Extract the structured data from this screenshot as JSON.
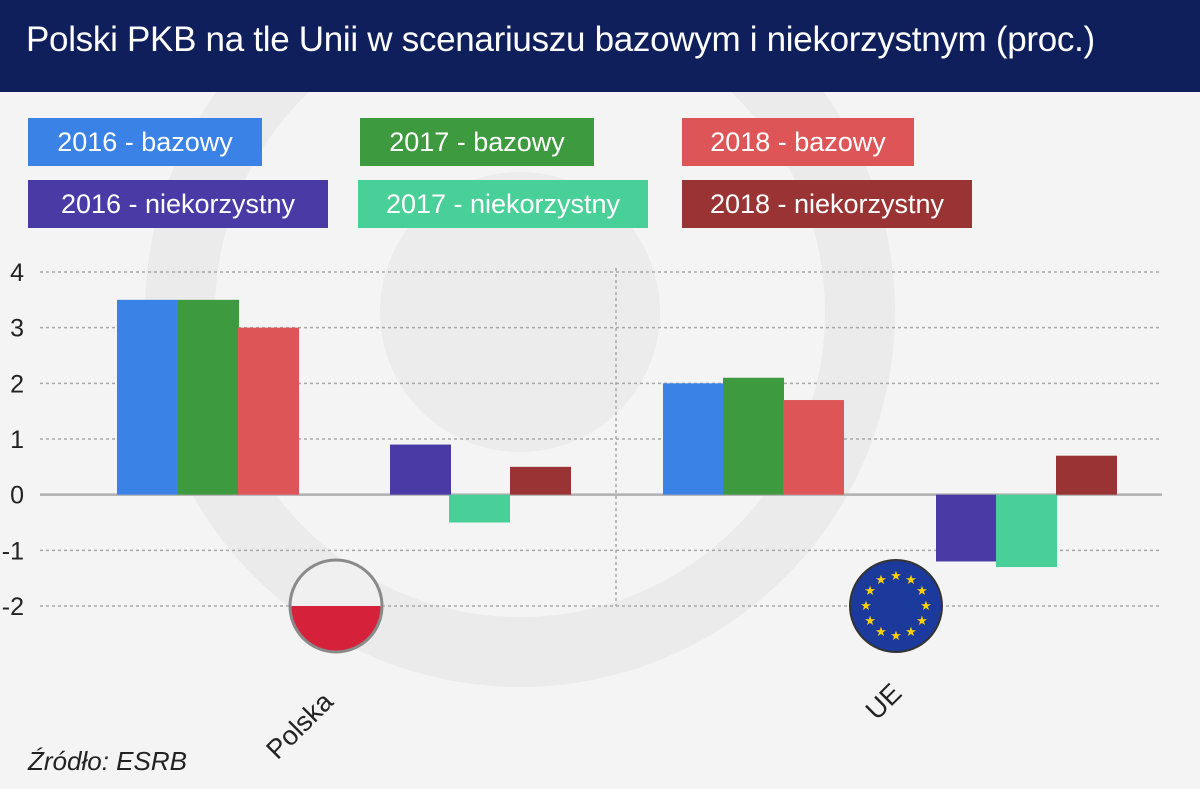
{
  "title": "Polski PKB na tle Unii w scenariuszu bazowym i niekorzystnym (proc.)",
  "source": "Źródło: ESRB",
  "colors": {
    "header_bg": "#0f1f5c",
    "2016_bazowy": "#3b82e6",
    "2017_bazowy": "#3e9a3e",
    "2018_bazowy": "#de5557",
    "2016_niekorzystny": "#4a3aa6",
    "2017_niekorzystny": "#49d098",
    "2018_niekorzystny": "#9a3434"
  },
  "chart_data": {
    "type": "bar",
    "title": "Polski PKB na tle Unii w scenariuszu bazowym i niekorzystnym (proc.)",
    "categories": [
      "Polska",
      "UE"
    ],
    "ylim": [
      -2,
      4
    ],
    "yticks": [
      "4",
      "3",
      "2",
      "1",
      "0",
      "-1",
      "-2"
    ],
    "grid": true,
    "legend_position": "top",
    "series": [
      {
        "name": "2016 - bazowy",
        "values": [
          3.5,
          2.0
        ]
      },
      {
        "name": "2017 - bazowy",
        "values": [
          3.5,
          2.1
        ]
      },
      {
        "name": "2018 - bazowy",
        "values": [
          3.0,
          1.7
        ]
      },
      {
        "name": "2016 - niekorzystny",
        "values": [
          0.9,
          -1.2
        ]
      },
      {
        "name": "2017 - niekorzystny",
        "values": [
          -0.5,
          -1.3
        ]
      },
      {
        "name": "2018 - niekorzystny",
        "values": [
          0.5,
          0.7
        ]
      }
    ]
  },
  "flags": {
    "polska": "flag-poland-icon",
    "ue": "flag-eu-icon"
  }
}
